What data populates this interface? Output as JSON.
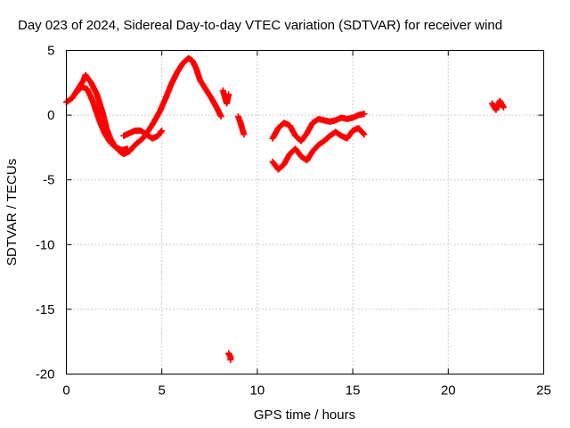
{
  "chart_data": {
    "type": "scatter",
    "title": "Day 023 of 2024, Sidereal Day-to-day VTEC variation (SDTVAR) for receiver wind",
    "xlabel": "GPS time / hours",
    "ylabel": "SDTVAR / TECUs",
    "xlim": [
      0,
      25
    ],
    "ylim": [
      -20,
      5
    ],
    "grid": true,
    "marker": "+",
    "color": "#ff0000",
    "x_ticks": [
      {
        "value": 0,
        "label": "0"
      },
      {
        "value": 5,
        "label": "5"
      },
      {
        "value": 10,
        "label": "10"
      },
      {
        "value": 15,
        "label": "15"
      },
      {
        "value": 20,
        "label": "20"
      },
      {
        "value": 25,
        "label": "25"
      }
    ],
    "y_ticks": [
      {
        "value": 5,
        "label": "5"
      },
      {
        "value": 0,
        "label": "0"
      },
      {
        "value": -5,
        "label": "-5"
      },
      {
        "value": -10,
        "label": "-10"
      },
      {
        "value": -15,
        "label": "-15"
      },
      {
        "value": -20,
        "label": "-20"
      }
    ],
    "series": [
      {
        "name": "main-band",
        "x": [
          0.0,
          0.3,
          0.6,
          0.9,
          1.0,
          1.3,
          1.6,
          1.9,
          2.1,
          2.3,
          2.5,
          2.8,
          3.0,
          3.3,
          3.6,
          4.0,
          4.3,
          4.6,
          4.9,
          5.2,
          5.5,
          5.8,
          6.1,
          6.4,
          6.6,
          6.8,
          7.0,
          7.3,
          7.6,
          7.9,
          8.1
        ],
        "y": [
          1.0,
          1.3,
          2.0,
          2.7,
          3.1,
          2.5,
          1.6,
          0.2,
          -1.0,
          -1.8,
          -2.3,
          -2.8,
          -3.0,
          -2.8,
          -2.3,
          -1.8,
          -1.2,
          -0.5,
          0.3,
          1.3,
          2.4,
          3.3,
          4.0,
          4.4,
          4.2,
          3.6,
          2.7,
          2.0,
          1.3,
          0.5,
          -0.1
        ]
      },
      {
        "name": "main-band-lower",
        "x": [
          0.5,
          0.8,
          1.1,
          1.4,
          1.7,
          2.0,
          2.3,
          2.6,
          2.9,
          3.2
        ],
        "y": [
          1.7,
          2.2,
          2.0,
          1.0,
          -0.3,
          -1.4,
          -2.1,
          -2.5,
          -2.7,
          -2.6
        ]
      },
      {
        "name": "inner-loop-3-5h",
        "x": [
          3.0,
          3.3,
          3.6,
          3.9,
          4.2,
          4.5,
          4.8,
          5.0
        ],
        "y": [
          -1.6,
          -1.4,
          -1.2,
          -1.2,
          -1.5,
          -1.8,
          -1.6,
          -1.2
        ]
      },
      {
        "name": "segment-8-9h",
        "x": [
          8.2,
          8.3,
          8.4,
          8.5
        ],
        "y": [
          1.9,
          1.4,
          0.9,
          1.6
        ]
      },
      {
        "name": "segment-9h",
        "x": [
          9.0,
          9.1,
          9.2,
          9.3
        ],
        "y": [
          -0.1,
          -0.5,
          -1.0,
          -1.5
        ]
      },
      {
        "name": "cluster-10-16h-upper",
        "x": [
          10.8,
          11.1,
          11.4,
          11.7,
          12.0,
          12.3,
          12.6,
          12.9,
          13.2,
          13.5,
          13.8,
          14.1,
          14.4,
          14.7,
          15.0,
          15.3,
          15.6
        ],
        "y": [
          -1.8,
          -1.0,
          -0.6,
          -0.8,
          -1.6,
          -2.0,
          -1.4,
          -0.6,
          -0.3,
          -0.4,
          -0.5,
          -0.4,
          -0.2,
          -0.3,
          -0.2,
          0.0,
          0.1
        ]
      },
      {
        "name": "cluster-10-16h-lower",
        "x": [
          10.8,
          11.1,
          11.4,
          11.7,
          12.0,
          12.3,
          12.6,
          12.9,
          13.2,
          13.5,
          13.8,
          14.1,
          14.4,
          14.7,
          15.0,
          15.3,
          15.6
        ],
        "y": [
          -3.6,
          -4.2,
          -3.8,
          -3.0,
          -2.6,
          -3.2,
          -3.5,
          -2.8,
          -2.3,
          -2.0,
          -1.6,
          -1.3,
          -1.6,
          -1.8,
          -1.2,
          -1.0,
          -1.5
        ]
      },
      {
        "name": "cluster-22h",
        "x": [
          22.3,
          22.5,
          22.7,
          22.9
        ],
        "y": [
          0.9,
          0.4,
          1.1,
          0.6
        ]
      },
      {
        "name": "outlier",
        "x": [
          8.5,
          8.6,
          8.6
        ],
        "y": [
          -18.4,
          -18.7,
          -18.9
        ]
      }
    ]
  }
}
